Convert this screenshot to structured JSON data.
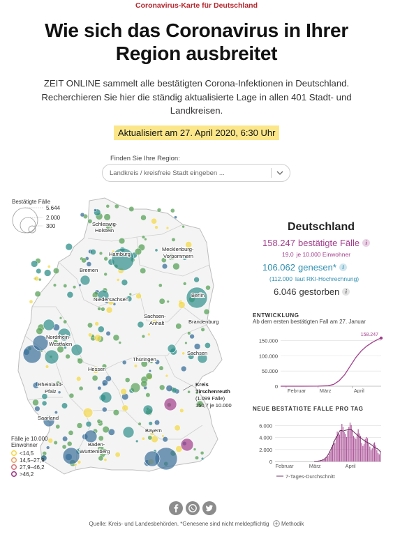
{
  "kicker": "Coronavirus-Karte für Deutschland",
  "headline": "Wie sich das Coronavirus in Ihrer Region ausbreitet",
  "intro": "ZEIT ONLINE sammelt alle bestätigten Corona-Infektionen in Deutschland. Recherchieren Sie hier die ständig aktualisierte Lage in allen 401 Stadt- und Landkreisen.",
  "updated": "Aktualisiert am 27. April 2020, 6:30 Uhr",
  "search": {
    "label": "Finden Sie Ihre Region:",
    "placeholder": "Landkreis / kreisfreie Stadt eingeben ..."
  },
  "map": {
    "size_legend": {
      "title": "Bestätigte Fälle",
      "values": [
        "5.644",
        "2.000",
        "300"
      ]
    },
    "color_legend": {
      "title_line1": "Fälle je 10.000",
      "title_line2": "Einwohner",
      "items": [
        {
          "label": "<14,5",
          "color": "#f3d94c"
        },
        {
          "label": "14,5–27,9",
          "color": "#e9a66b"
        },
        {
          "label": "27,9–46,2",
          "color": "#d37a80"
        },
        {
          "label": ">46,2",
          "color": "#a23e8c"
        }
      ]
    },
    "regions": [
      "Schleswig-",
      "Holstein",
      "Hamburg",
      "Mecklenburg-",
      "Vorpommern",
      "Bremen",
      "Niedersachsen",
      "Berlin",
      "Sachsen-",
      "Anhalt",
      "Brandenburg",
      "Nordrhein-",
      "Westfalen",
      "Hessen",
      "Thüringen",
      "Sachsen",
      "Rheinland-",
      "Pfalz",
      "Saarland",
      "Bayern",
      "Baden-",
      "Württemberg"
    ],
    "callout": {
      "line1": "Kreis",
      "line2": "Tirschenreuth",
      "line3": "(1.099 Fälle)",
      "line4": "150,7 je 10.000"
    },
    "colors": {
      "teal": "#2f8f8a",
      "blue": "#3a6f9a",
      "green": "#5aa15a",
      "yellow": "#f3d94c",
      "purple": "#a23e8c"
    }
  },
  "sidebar": {
    "title": "Deutschland",
    "confirmed": "158.247",
    "confirmed_label": "bestätigte Fälle",
    "per_capita_value": "19,0",
    "per_capita_label": "je 10.000 Einwohner",
    "recovered": "106.062",
    "recovered_label": "genesen*",
    "recovered_note": "(112.000",
    "recovered_note2": "laut RKI-Hochrechnung)",
    "deaths": "6.046",
    "deaths_label": "gestorben",
    "info_glyph": "i",
    "accent_pink": "#a23e8c",
    "accent_teal": "#2f8fb0"
  },
  "chart_data": [
    {
      "type": "line",
      "title": "ENTWICKLUNG",
      "subtitle": "Ab dem ersten bestätigten Fall am 27. Januar",
      "x_ticks": [
        "Februar",
        "März",
        "April"
      ],
      "y_ticks": [
        "0",
        "50.000",
        "100.000",
        "150.000"
      ],
      "ylim": [
        0,
        165000
      ],
      "end_label": "158.247",
      "x": [
        "2020-01-27",
        "2020-02-15",
        "2020-03-01",
        "2020-03-10",
        "2020-03-15",
        "2020-03-20",
        "2020-03-25",
        "2020-03-30",
        "2020-04-04",
        "2020-04-09",
        "2020-04-14",
        "2020-04-19",
        "2020-04-24",
        "2020-04-27"
      ],
      "values": [
        1,
        16,
        130,
        1600,
        6000,
        18000,
        38000,
        66000,
        94000,
        116000,
        132000,
        144000,
        154000,
        158247
      ],
      "color": "#a23e8c"
    },
    {
      "type": "bar",
      "title": "NEUE BESTÄTIGTE FÄLLE PRO TAG",
      "x_ticks": [
        "Februar",
        "März",
        "April"
      ],
      "y_ticks": [
        "0",
        "2.000",
        "4.000",
        "6.000"
      ],
      "ylim": [
        0,
        7000
      ],
      "legend": "7-Tages-Durchschnitt",
      "values_march_april": [
        10,
        20,
        30,
        40,
        60,
        110,
        150,
        220,
        280,
        400,
        500,
        700,
        900,
        1300,
        1700,
        2400,
        2800,
        3400,
        3100,
        4200,
        5000,
        4800,
        4500,
        5300,
        6300,
        5800,
        4900,
        4600,
        4100,
        5200,
        5800,
        6500,
        6100,
        5300,
        4300,
        4000,
        3800,
        4700,
        5400,
        4700,
        4300,
        3100,
        2600,
        2900,
        3800,
        4100,
        3900,
        3100,
        2500,
        1900,
        2200,
        3000,
        3200,
        2700,
        1900,
        1400,
        1200,
        1800
      ],
      "color": "#a23e8c"
    }
  ],
  "footer": {
    "icons": [
      "facebook-icon",
      "whatsapp-icon",
      "twitter-icon"
    ],
    "source": "Quelle: Kreis- und Landesbehörden. *Genesene sind nicht meldepflichtig",
    "method_label": "Methodik"
  }
}
